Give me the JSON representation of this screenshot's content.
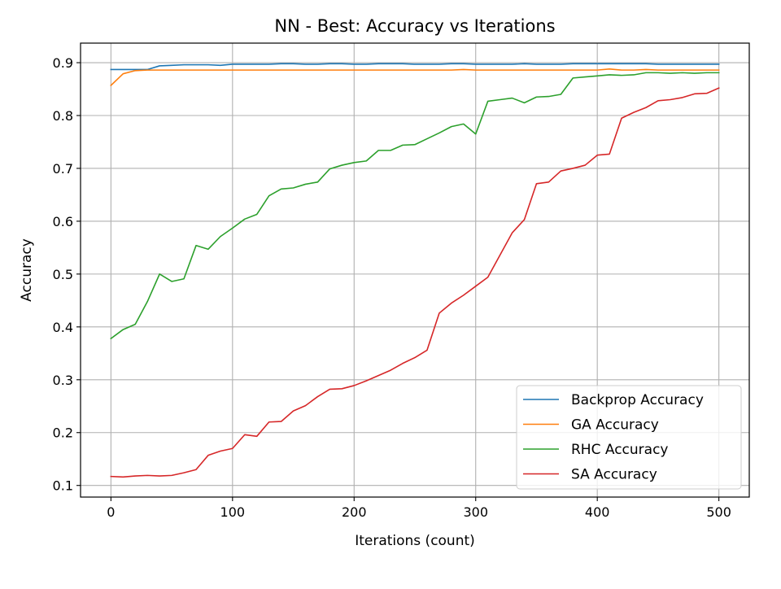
{
  "chart_data": {
    "type": "line",
    "title": "NN - Best: Accuracy vs Iterations",
    "xlabel": "Iterations (count)",
    "ylabel": "Accuracy",
    "xlim": [
      -25,
      525
    ],
    "ylim": [
      0.078,
      0.937
    ],
    "xticks": [
      0,
      100,
      200,
      300,
      400,
      500
    ],
    "xtick_labels": [
      "0",
      "100",
      "200",
      "300",
      "400",
      "500"
    ],
    "yticks": [
      0.1,
      0.2,
      0.3,
      0.4,
      0.5,
      0.6,
      0.7,
      0.8,
      0.9
    ],
    "ytick_labels": [
      "0.1",
      "0.2",
      "0.3",
      "0.4",
      "0.5",
      "0.6",
      "0.7",
      "0.8",
      "0.9"
    ],
    "grid": true,
    "legend_position": "lower-right",
    "x": [
      0,
      10,
      20,
      30,
      40,
      50,
      60,
      70,
      80,
      90,
      100,
      110,
      120,
      130,
      140,
      150,
      160,
      170,
      180,
      190,
      200,
      210,
      220,
      230,
      240,
      250,
      260,
      270,
      280,
      290,
      300,
      310,
      320,
      330,
      340,
      350,
      360,
      370,
      380,
      390,
      400,
      410,
      420,
      430,
      440,
      450,
      460,
      470,
      480,
      490,
      500
    ],
    "series": [
      {
        "name": "Backprop Accuracy",
        "color": "#1f77b4",
        "values": [
          0.887,
          0.887,
          0.887,
          0.887,
          0.894,
          0.895,
          0.896,
          0.896,
          0.896,
          0.895,
          0.897,
          0.897,
          0.897,
          0.897,
          0.898,
          0.898,
          0.897,
          0.897,
          0.898,
          0.898,
          0.897,
          0.897,
          0.898,
          0.898,
          0.898,
          0.897,
          0.897,
          0.897,
          0.898,
          0.898,
          0.897,
          0.897,
          0.897,
          0.897,
          0.898,
          0.897,
          0.897,
          0.897,
          0.898,
          0.898,
          0.898,
          0.898,
          0.898,
          0.898,
          0.898,
          0.897,
          0.897,
          0.897,
          0.897,
          0.897,
          0.897
        ]
      },
      {
        "name": "GA Accuracy",
        "color": "#ff7f0e",
        "values": [
          0.857,
          0.879,
          0.885,
          0.886,
          0.886,
          0.886,
          0.886,
          0.886,
          0.886,
          0.886,
          0.886,
          0.886,
          0.886,
          0.886,
          0.886,
          0.886,
          0.886,
          0.886,
          0.886,
          0.886,
          0.886,
          0.886,
          0.886,
          0.886,
          0.886,
          0.886,
          0.886,
          0.886,
          0.886,
          0.887,
          0.886,
          0.886,
          0.886,
          0.886,
          0.886,
          0.886,
          0.886,
          0.886,
          0.886,
          0.886,
          0.886,
          0.888,
          0.886,
          0.886,
          0.887,
          0.886,
          0.886,
          0.886,
          0.886,
          0.886,
          0.886
        ]
      },
      {
        "name": "RHC Accuracy",
        "color": "#2ca02c",
        "values": [
          0.378,
          0.395,
          0.405,
          0.448,
          0.5,
          0.486,
          0.491,
          0.554,
          0.547,
          0.571,
          0.587,
          0.604,
          0.613,
          0.648,
          0.661,
          0.663,
          0.67,
          0.674,
          0.699,
          0.706,
          0.711,
          0.714,
          0.734,
          0.734,
          0.744,
          0.745,
          0.756,
          0.767,
          0.779,
          0.784,
          0.765,
          0.827,
          0.83,
          0.833,
          0.824,
          0.835,
          0.836,
          0.84,
          0.871,
          0.873,
          0.875,
          0.877,
          0.876,
          0.877,
          0.881,
          0.881,
          0.88,
          0.881,
          0.88,
          0.881,
          0.881
        ]
      },
      {
        "name": "SA Accuracy",
        "color": "#d62728",
        "values": [
          0.117,
          0.116,
          0.118,
          0.119,
          0.118,
          0.119,
          0.124,
          0.13,
          0.157,
          0.165,
          0.17,
          0.196,
          0.193,
          0.22,
          0.221,
          0.241,
          0.251,
          0.268,
          0.282,
          0.283,
          0.289,
          0.298,
          0.308,
          0.318,
          0.331,
          0.342,
          0.356,
          0.426,
          0.445,
          0.46,
          0.477,
          0.494,
          0.536,
          0.578,
          0.603,
          0.671,
          0.674,
          0.695,
          0.7,
          0.706,
          0.725,
          0.727,
          0.795,
          0.806,
          0.815,
          0.828,
          0.83,
          0.834,
          0.841,
          0.842,
          0.852
        ]
      }
    ]
  }
}
